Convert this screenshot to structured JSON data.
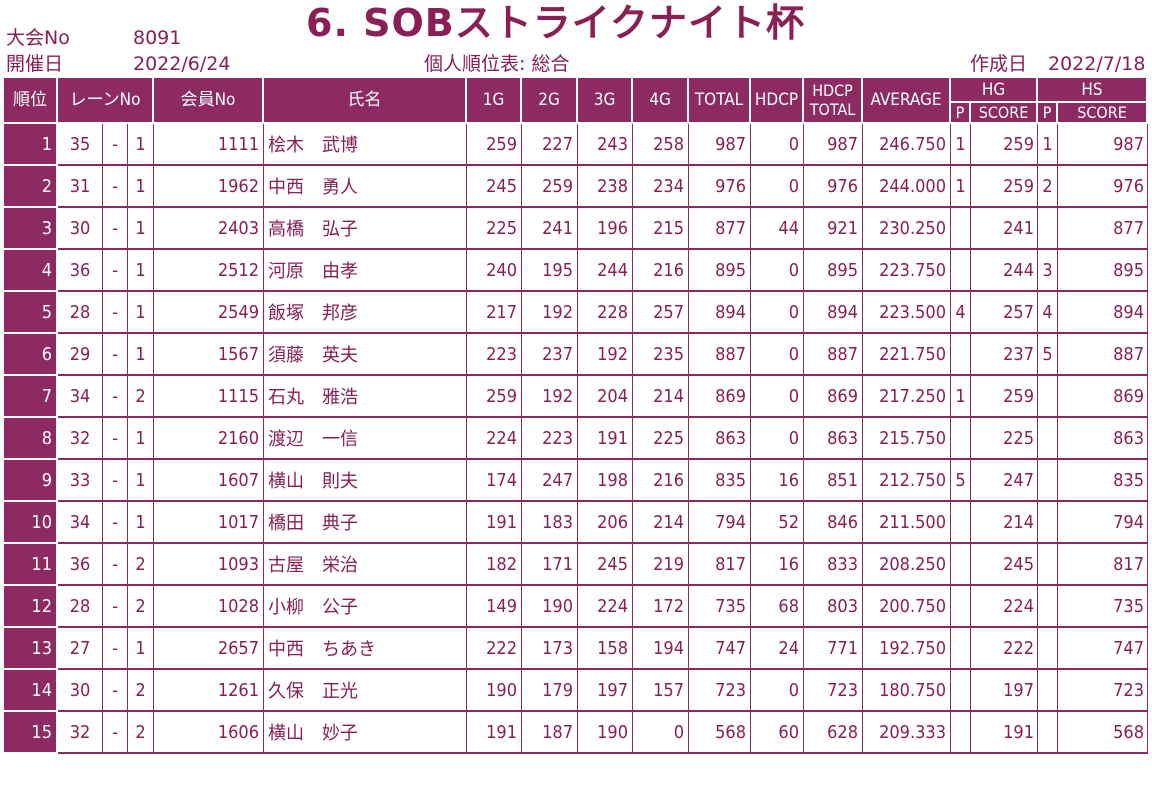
{
  "title": "6. SOBストライクナイト杯",
  "meta": {
    "tournament_label": "大会No",
    "tournament_no": "8091",
    "date_label": "開催日",
    "date": "2022/6/24",
    "sheet_name": "個人順位表: 総合",
    "created_label": "作成日",
    "created_date": "2022/7/18"
  },
  "colors": {
    "accent": "#8d2a61",
    "text": "#8a1f55",
    "background": "#ffffff"
  },
  "headers": {
    "rank": "順位",
    "lane": "レーンNo",
    "member": "会員No",
    "name": "氏名",
    "g1": "1G",
    "g2": "2G",
    "g3": "3G",
    "g4": "4G",
    "total": "TOTAL",
    "hdcp": "HDCP",
    "hdcp_total_1": "HDCP",
    "hdcp_total_2": "TOTAL",
    "average": "AVERAGE",
    "hg": "HG",
    "hs": "HS",
    "p": "P",
    "score": "SCORE"
  },
  "rows": [
    {
      "rank": "1",
      "lane": "35",
      "dash": "-",
      "lane_sub": "1",
      "member": "1111",
      "name": "桧木　武博",
      "g1": "259",
      "g2": "227",
      "g3": "243",
      "g4": "258",
      "total": "987",
      "hdcp": "0",
      "hdcp_total": "987",
      "average": "246.750",
      "hg_p": "1",
      "hg_score": "259",
      "hs_p": "1",
      "hs_score": "987"
    },
    {
      "rank": "2",
      "lane": "31",
      "dash": "-",
      "lane_sub": "1",
      "member": "1962",
      "name": "中西　勇人",
      "g1": "245",
      "g2": "259",
      "g3": "238",
      "g4": "234",
      "total": "976",
      "hdcp": "0",
      "hdcp_total": "976",
      "average": "244.000",
      "hg_p": "1",
      "hg_score": "259",
      "hs_p": "2",
      "hs_score": "976"
    },
    {
      "rank": "3",
      "lane": "30",
      "dash": "-",
      "lane_sub": "1",
      "member": "2403",
      "name": "高橋　弘子",
      "g1": "225",
      "g2": "241",
      "g3": "196",
      "g4": "215",
      "total": "877",
      "hdcp": "44",
      "hdcp_total": "921",
      "average": "230.250",
      "hg_p": "",
      "hg_score": "241",
      "hs_p": "",
      "hs_score": "877"
    },
    {
      "rank": "4",
      "lane": "36",
      "dash": "-",
      "lane_sub": "1",
      "member": "2512",
      "name": "河原　由孝",
      "g1": "240",
      "g2": "195",
      "g3": "244",
      "g4": "216",
      "total": "895",
      "hdcp": "0",
      "hdcp_total": "895",
      "average": "223.750",
      "hg_p": "",
      "hg_score": "244",
      "hs_p": "3",
      "hs_score": "895"
    },
    {
      "rank": "5",
      "lane": "28",
      "dash": "-",
      "lane_sub": "1",
      "member": "2549",
      "name": "飯塚　邦彦",
      "g1": "217",
      "g2": "192",
      "g3": "228",
      "g4": "257",
      "total": "894",
      "hdcp": "0",
      "hdcp_total": "894",
      "average": "223.500",
      "hg_p": "4",
      "hg_score": "257",
      "hs_p": "4",
      "hs_score": "894"
    },
    {
      "rank": "6",
      "lane": "29",
      "dash": "-",
      "lane_sub": "1",
      "member": "1567",
      "name": "須藤　英夫",
      "g1": "223",
      "g2": "237",
      "g3": "192",
      "g4": "235",
      "total": "887",
      "hdcp": "0",
      "hdcp_total": "887",
      "average": "221.750",
      "hg_p": "",
      "hg_score": "237",
      "hs_p": "5",
      "hs_score": "887"
    },
    {
      "rank": "7",
      "lane": "34",
      "dash": "-",
      "lane_sub": "2",
      "member": "1115",
      "name": "石丸　雅浩",
      "g1": "259",
      "g2": "192",
      "g3": "204",
      "g4": "214",
      "total": "869",
      "hdcp": "0",
      "hdcp_total": "869",
      "average": "217.250",
      "hg_p": "1",
      "hg_score": "259",
      "hs_p": "",
      "hs_score": "869"
    },
    {
      "rank": "8",
      "lane": "32",
      "dash": "-",
      "lane_sub": "1",
      "member": "2160",
      "name": "渡辺　一信",
      "g1": "224",
      "g2": "223",
      "g3": "191",
      "g4": "225",
      "total": "863",
      "hdcp": "0",
      "hdcp_total": "863",
      "average": "215.750",
      "hg_p": "",
      "hg_score": "225",
      "hs_p": "",
      "hs_score": "863"
    },
    {
      "rank": "9",
      "lane": "33",
      "dash": "-",
      "lane_sub": "1",
      "member": "1607",
      "name": "横山　則夫",
      "g1": "174",
      "g2": "247",
      "g3": "198",
      "g4": "216",
      "total": "835",
      "hdcp": "16",
      "hdcp_total": "851",
      "average": "212.750",
      "hg_p": "5",
      "hg_score": "247",
      "hs_p": "",
      "hs_score": "835"
    },
    {
      "rank": "10",
      "lane": "34",
      "dash": "-",
      "lane_sub": "1",
      "member": "1017",
      "name": "橋田　典子",
      "g1": "191",
      "g2": "183",
      "g3": "206",
      "g4": "214",
      "total": "794",
      "hdcp": "52",
      "hdcp_total": "846",
      "average": "211.500",
      "hg_p": "",
      "hg_score": "214",
      "hs_p": "",
      "hs_score": "794"
    },
    {
      "rank": "11",
      "lane": "36",
      "dash": "-",
      "lane_sub": "2",
      "member": "1093",
      "name": "古屋　栄治",
      "g1": "182",
      "g2": "171",
      "g3": "245",
      "g4": "219",
      "total": "817",
      "hdcp": "16",
      "hdcp_total": "833",
      "average": "208.250",
      "hg_p": "",
      "hg_score": "245",
      "hs_p": "",
      "hs_score": "817"
    },
    {
      "rank": "12",
      "lane": "28",
      "dash": "-",
      "lane_sub": "2",
      "member": "1028",
      "name": "小柳　公子",
      "g1": "149",
      "g2": "190",
      "g3": "224",
      "g4": "172",
      "total": "735",
      "hdcp": "68",
      "hdcp_total": "803",
      "average": "200.750",
      "hg_p": "",
      "hg_score": "224",
      "hs_p": "",
      "hs_score": "735"
    },
    {
      "rank": "13",
      "lane": "27",
      "dash": "-",
      "lane_sub": "1",
      "member": "2657",
      "name": "中西　ちあき",
      "g1": "222",
      "g2": "173",
      "g3": "158",
      "g4": "194",
      "total": "747",
      "hdcp": "24",
      "hdcp_total": "771",
      "average": "192.750",
      "hg_p": "",
      "hg_score": "222",
      "hs_p": "",
      "hs_score": "747"
    },
    {
      "rank": "14",
      "lane": "30",
      "dash": "-",
      "lane_sub": "2",
      "member": "1261",
      "name": "久保　正光",
      "g1": "190",
      "g2": "179",
      "g3": "197",
      "g4": "157",
      "total": "723",
      "hdcp": "0",
      "hdcp_total": "723",
      "average": "180.750",
      "hg_p": "",
      "hg_score": "197",
      "hs_p": "",
      "hs_score": "723"
    },
    {
      "rank": "15",
      "lane": "32",
      "dash": "-",
      "lane_sub": "2",
      "member": "1606",
      "name": "横山　妙子",
      "g1": "191",
      "g2": "187",
      "g3": "190",
      "g4": "0",
      "total": "568",
      "hdcp": "60",
      "hdcp_total": "628",
      "average": "209.333",
      "hg_p": "",
      "hg_score": "191",
      "hs_p": "",
      "hs_score": "568"
    }
  ]
}
